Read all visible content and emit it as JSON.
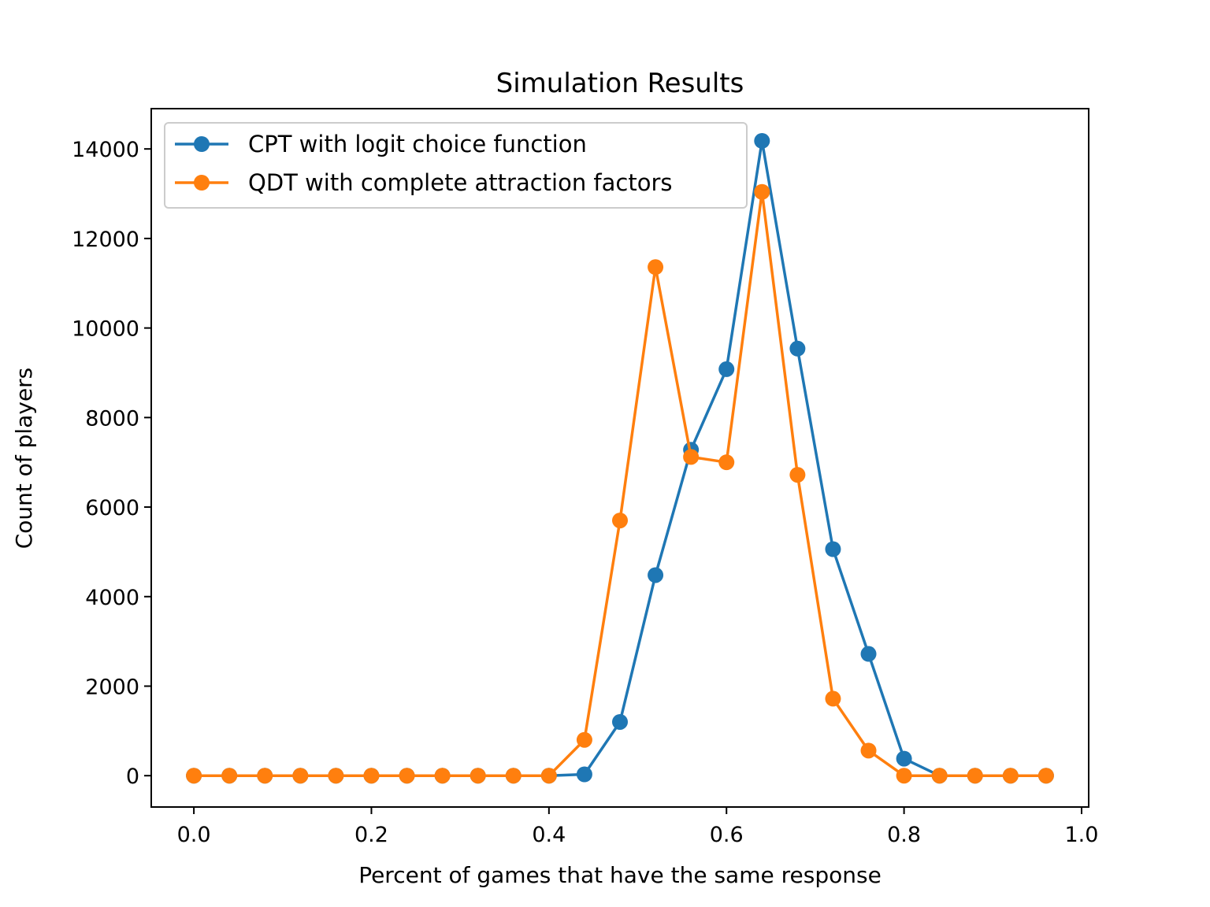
{
  "chart_data": {
    "type": "line",
    "title": "Simulation Results",
    "xlabel": "Percent of games that have the same response",
    "ylabel": "Count of players",
    "xlim": [
      -0.048,
      1.008
    ],
    "ylim": [
      -700,
      14900
    ],
    "xticks": [
      0.0,
      0.2,
      0.4,
      0.6,
      0.8,
      1.0
    ],
    "xtick_labels": [
      "0.0",
      "0.2",
      "0.4",
      "0.6",
      "0.8",
      "1.0"
    ],
    "yticks": [
      0,
      2000,
      4000,
      6000,
      8000,
      10000,
      12000,
      14000
    ],
    "ytick_labels": [
      "0",
      "2000",
      "4000",
      "6000",
      "8000",
      "10000",
      "12000",
      "14000"
    ],
    "legend_position": "upper-left",
    "x": [
      0.0,
      0.04,
      0.08,
      0.12,
      0.16,
      0.2,
      0.24,
      0.28,
      0.32,
      0.36,
      0.4,
      0.44,
      0.48,
      0.52,
      0.56,
      0.6,
      0.64,
      0.68,
      0.72,
      0.76,
      0.8,
      0.84,
      0.88,
      0.92,
      0.96
    ],
    "series": [
      {
        "name": "CPT with logit choice function",
        "color": "#1f77b4",
        "values": [
          0,
          0,
          0,
          0,
          0,
          0,
          0,
          0,
          0,
          0,
          0,
          30,
          1200,
          4480,
          7280,
          9080,
          14180,
          9540,
          5060,
          2720,
          380,
          0,
          0,
          0,
          0
        ]
      },
      {
        "name": "QDT with complete attraction factors",
        "color": "#ff7f0e",
        "values": [
          0,
          0,
          0,
          0,
          0,
          0,
          0,
          0,
          0,
          0,
          0,
          800,
          5700,
          11360,
          7120,
          7000,
          13040,
          6720,
          1720,
          560,
          0,
          0,
          0,
          0,
          0
        ]
      }
    ]
  }
}
